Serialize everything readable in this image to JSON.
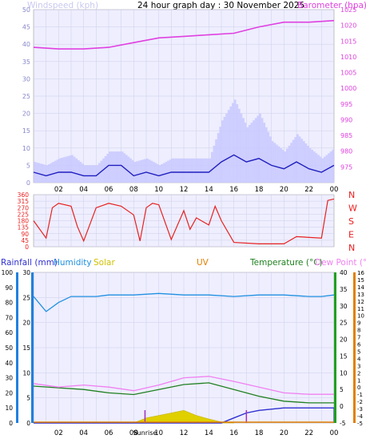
{
  "header": {
    "left_label": "Windspeed (kph)",
    "title": "24 hour graph day : 30 November 2025",
    "right_label": "Barometer (hpa)"
  },
  "colors": {
    "windspeed_label": "#c8c8f0",
    "barometer": "#e040e0",
    "wind_avg": "#2020c0",
    "wind_gust": "#c8c8ff",
    "direction": "#e82020",
    "rain": "#3030d0",
    "humidity": "#2090e0",
    "solar": "#e0d000",
    "uv": "#e08000",
    "temperature": "#208020",
    "dewpoint": "#f080f0",
    "axis_blue": "#2080e0",
    "axis_green": "#20a020",
    "axis_orange": "#e08000",
    "event_marker": "#a030c0"
  },
  "time_axis": {
    "ticks": [
      "02",
      "04",
      "06",
      "08",
      "10",
      "12",
      "14",
      "16",
      "18",
      "20",
      "22",
      "00"
    ]
  },
  "chart_data": [
    {
      "type": "line",
      "name": "wind-and-pressure",
      "xlabel": "",
      "left_axis": {
        "label": "Windspeed (kph)",
        "range": [
          0,
          50
        ],
        "ticks": [
          "0",
          "5",
          "10",
          "15",
          "20",
          "25",
          "30",
          "35",
          "40",
          "45",
          "50"
        ]
      },
      "right_axis": {
        "label": "Barometer (hpa)",
        "range": [
          970,
          1025
        ],
        "ticks": [
          "975",
          "980",
          "985",
          "990",
          "995",
          "1000",
          "1005",
          "1010",
          "1015",
          "1020",
          "1025"
        ]
      },
      "grid": true,
      "series": [
        {
          "name": "Barometer (hpa)",
          "axis": "right",
          "x": [
            0,
            2,
            4,
            6,
            8,
            10,
            12,
            14,
            16,
            18,
            20,
            22,
            24
          ],
          "values": [
            1013,
            1012.5,
            1012.5,
            1013,
            1014.5,
            1016,
            1016.5,
            1017,
            1017.5,
            1019.5,
            1021,
            1021,
            1021.5
          ]
        },
        {
          "name": "Windspeed (kph)",
          "axis": "left",
          "x": [
            0,
            1,
            2,
            3,
            4,
            5,
            6,
            7,
            8,
            9,
            10,
            11,
            12,
            13,
            14,
            15,
            16,
            17,
            18,
            19,
            20,
            21,
            22,
            23,
            24
          ],
          "values": [
            3,
            2,
            3,
            3,
            2,
            2,
            5,
            5,
            2,
            3,
            2,
            3,
            3,
            3,
            3,
            6,
            8,
            6,
            7,
            5,
            4,
            6,
            4,
            3,
            5
          ]
        },
        {
          "name": "Wind gust (kph)",
          "axis": "left",
          "x": [
            0,
            1,
            2,
            3,
            4,
            5,
            6,
            7,
            8,
            9,
            10,
            11,
            12,
            13,
            14,
            15,
            16,
            17,
            18,
            19,
            20,
            21,
            22,
            23,
            24
          ],
          "values": [
            6,
            5,
            7,
            8,
            5,
            5,
            9,
            9,
            6,
            7,
            5,
            7,
            7,
            7,
            7,
            18,
            24,
            16,
            20,
            12,
            9,
            14,
            10,
            7,
            10
          ]
        }
      ]
    },
    {
      "type": "line",
      "name": "wind-direction",
      "left_axis": {
        "range": [
          0,
          360
        ],
        "ticks": [
          "0",
          "45",
          "90",
          "135",
          "180",
          "225",
          "270",
          "315",
          "360"
        ]
      },
      "right_axis": {
        "labels": [
          "N",
          "W",
          "S",
          "E",
          "N"
        ]
      },
      "grid": true,
      "series": [
        {
          "name": "Wind direction",
          "x": [
            0,
            1,
            1.5,
            2,
            3,
            3.5,
            4,
            5,
            6,
            7,
            8,
            8.5,
            9,
            9.5,
            10,
            11,
            12,
            12.5,
            13,
            14,
            14.5,
            15,
            16,
            18,
            20,
            21,
            23,
            23.5,
            24
          ],
          "values": [
            180,
            60,
            270,
            300,
            280,
            140,
            40,
            270,
            300,
            280,
            220,
            40,
            270,
            300,
            290,
            50,
            250,
            120,
            200,
            150,
            280,
            180,
            30,
            20,
            20,
            70,
            60,
            320,
            330
          ]
        }
      ]
    },
    {
      "type": "line",
      "name": "rain-humidity-solar-temperature",
      "left_axis": {
        "label": "Rainfall (mm)",
        "range": [
          0,
          30
        ],
        "ticks": [
          "0",
          "5",
          "10",
          "15",
          "20",
          "25",
          "30"
        ]
      },
      "left_axis_outer": {
        "label": "Humidity",
        "range": [
          0,
          100
        ],
        "ticks": [
          "0",
          "10",
          "20",
          "30",
          "40",
          "50",
          "60",
          "70",
          "80",
          "90",
          "100"
        ]
      },
      "right_axis": {
        "label": "Temperature (°C)",
        "range": [
          -5,
          40
        ],
        "ticks": [
          "-5",
          "0",
          "5",
          "10",
          "15",
          "20",
          "25",
          "30",
          "35",
          "40"
        ]
      },
      "right_axis_outer": {
        "label": "Dew Point (°C)",
        "range": [
          -5,
          16
        ],
        "ticks": [
          "-5",
          "-4",
          "-3",
          "-2",
          "-1",
          "0",
          "1",
          "2",
          "3",
          "4",
          "5",
          "6",
          "7",
          "8",
          "9",
          "10",
          "11",
          "12",
          "13",
          "14",
          "15",
          "16"
        ]
      },
      "solar_label": "Solar",
      "uv_label": "UV",
      "sunrise_label": "Sunrise",
      "grid": true,
      "series": [
        {
          "name": "Humidity",
          "axis": "humidity",
          "x": [
            0,
            1,
            2,
            3,
            4,
            5,
            6,
            8,
            10,
            12,
            14,
            16,
            18,
            20,
            22,
            23,
            24
          ],
          "values": [
            84,
            74,
            80,
            84,
            84,
            84,
            85,
            85,
            86,
            85,
            85,
            84,
            85,
            85,
            84,
            84,
            85
          ]
        },
        {
          "name": "Temperature (°C)",
          "axis": "temperature",
          "x": [
            0,
            2,
            4,
            6,
            8,
            10,
            12,
            14,
            16,
            18,
            20,
            22,
            24
          ],
          "values": [
            6,
            5.5,
            5,
            4,
            3.5,
            5,
            6.5,
            7,
            5,
            3,
            1.5,
            1,
            1
          ]
        },
        {
          "name": "Dew Point (°C)",
          "axis": "dewpoint",
          "x": [
            0,
            2,
            4,
            6,
            8,
            10,
            12,
            14,
            16,
            18,
            20,
            22,
            24
          ],
          "values": [
            0.5,
            0,
            0.3,
            0,
            -0.5,
            0.3,
            1.3,
            1.5,
            0.8,
            0,
            -0.8,
            -1,
            -1
          ]
        },
        {
          "name": "Rainfall (mm)",
          "axis": "rain",
          "x": [
            0,
            15,
            16,
            17,
            18,
            20,
            22,
            24
          ],
          "values": [
            0,
            0,
            1,
            2,
            2.5,
            3,
            3,
            3
          ]
        },
        {
          "name": "Solar",
          "axis": "rain",
          "x": [
            8,
            9,
            10,
            11,
            12,
            13,
            14,
            15,
            16
          ],
          "values": [
            0,
            1,
            1.5,
            2,
            2.5,
            1.5,
            0.8,
            0.2,
            0
          ]
        }
      ]
    }
  ]
}
